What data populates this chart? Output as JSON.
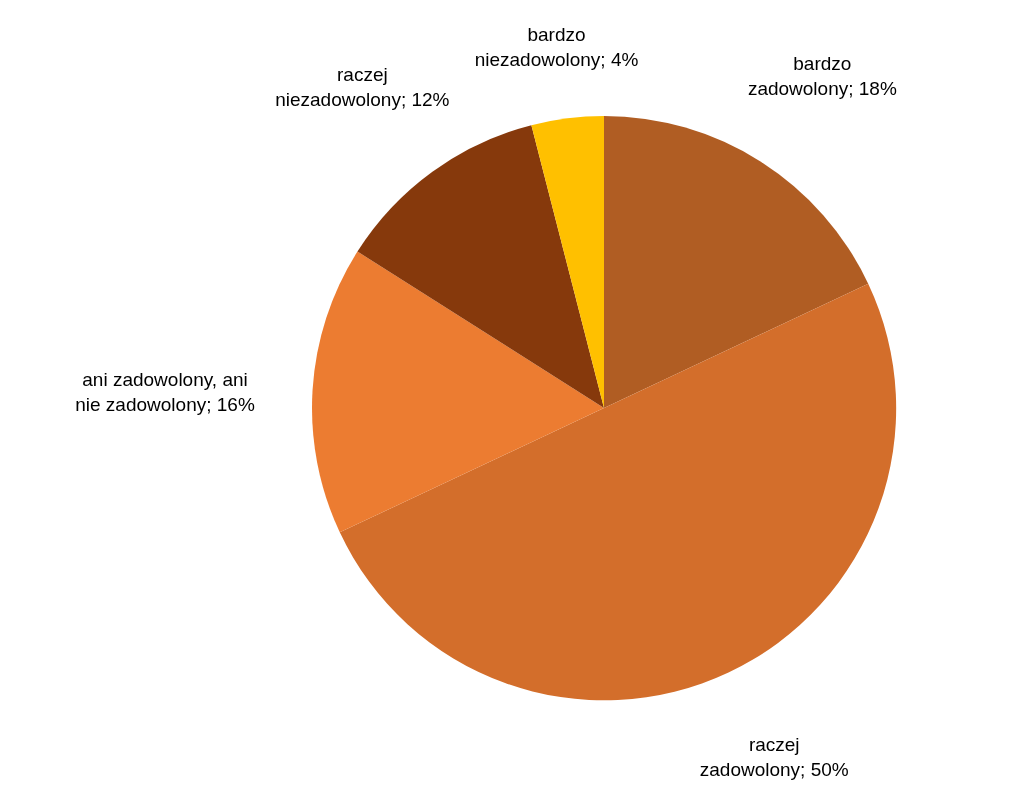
{
  "chart_data": {
    "type": "pie",
    "categories": [
      "bardzo zadowolony",
      "raczej zadowolony",
      "ani zadowolony, ani nie zadowolony",
      "raczej niezadowolony",
      "bardzo niezadowolony"
    ],
    "values": [
      18,
      50,
      16,
      12,
      4
    ],
    "value_labels": [
      "18%",
      "50%",
      "16%",
      "12%",
      "4%"
    ],
    "colors": [
      "#b05d23",
      "#d36e2b",
      "#ec7c31",
      "#86390c",
      "#ffc000"
    ]
  }
}
